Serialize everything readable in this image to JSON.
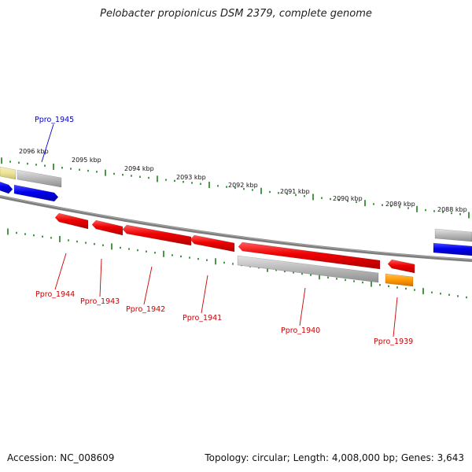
{
  "title": "Pelobacter propionicus DSM 2379, complete genome",
  "footer": {
    "accession": "Accession: NC_008609",
    "summary": "Topology: circular; Length: 4,008,000 bp; Genes: 3,643"
  },
  "scale_labels": [
    "2096 kbp",
    "2095 kbp",
    "2094 kbp",
    "2093 kbp",
    "2092 kbp",
    "2091 kbp",
    "2090 kbp",
    "2089 kbp",
    "2088 kbp"
  ],
  "genes": [
    {
      "name": "Ppro_1945",
      "strand": "reverse",
      "color": "#0000cc"
    },
    {
      "name": "Ppro_1944",
      "strand": "reverse",
      "color": "#cc0000"
    },
    {
      "name": "Ppro_1943",
      "strand": "reverse",
      "color": "#cc0000"
    },
    {
      "name": "Ppro_1942",
      "strand": "reverse",
      "color": "#cc0000"
    },
    {
      "name": "Ppro_1941",
      "strand": "reverse",
      "color": "#cc0000"
    },
    {
      "name": "Ppro_1940",
      "strand": "reverse",
      "color": "#cc0000"
    },
    {
      "name": "Ppro_1939",
      "strand": "reverse",
      "color": "#cc0000"
    }
  ],
  "colors": {
    "backbone": "#7a7a7a",
    "tick": "#1a7f1a",
    "cds_red": "#ee0000",
    "cds_blue": "#0000ee",
    "gene_grey": "#bcbcbc",
    "yellow": "#ece39a",
    "orange": "#ff8c00"
  }
}
